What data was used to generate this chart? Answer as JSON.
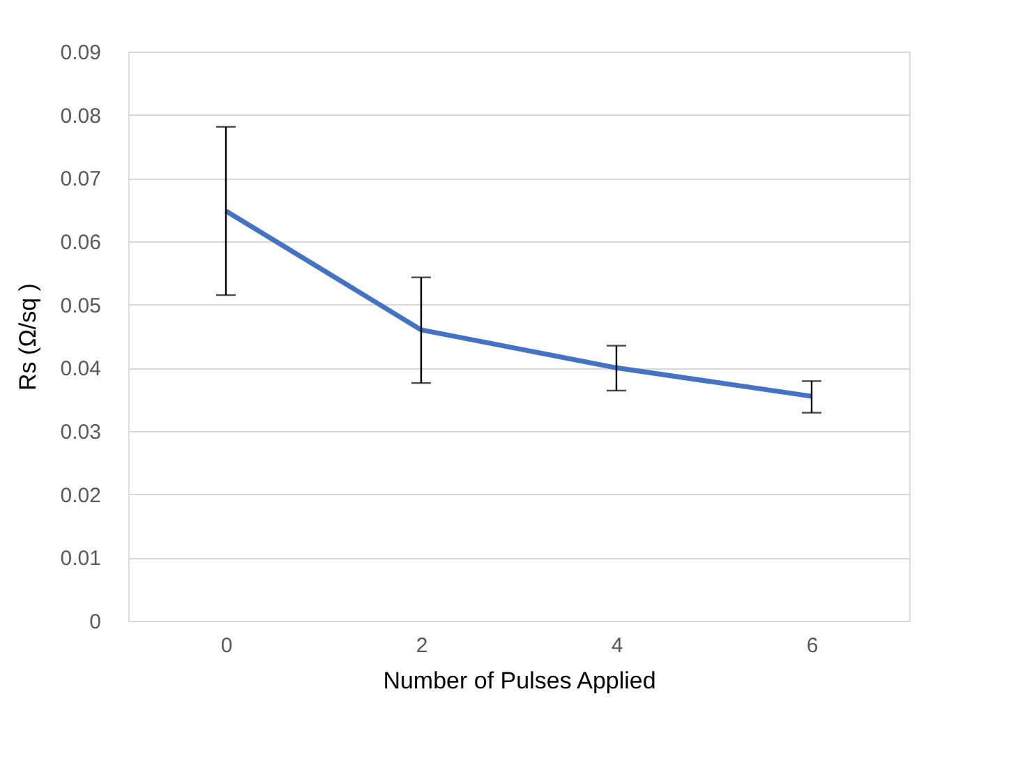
{
  "chart_data": {
    "type": "line",
    "xlabel": "Number of Pulses Applied",
    "ylabel": "Rs (Ω/sq )",
    "categories": [
      "0",
      "2",
      "4",
      "6"
    ],
    "series": [
      {
        "color": "#4472c4",
        "values": [
          0.0648,
          0.046,
          0.04,
          0.0355
        ],
        "errors": [
          [
            0.0515,
            0.0781
          ],
          [
            0.0376,
            0.0543
          ],
          [
            0.0364,
            0.0435
          ],
          [
            0.0329,
            0.0379
          ]
        ]
      }
    ],
    "ylim": [
      0,
      0.09
    ],
    "yticks": [
      0,
      0.01,
      0.02,
      0.03,
      0.04,
      0.05,
      0.06,
      0.07,
      0.08,
      0.09
    ],
    "grid": "y",
    "legend": false,
    "marker": "none",
    "line_style": "solid"
  }
}
